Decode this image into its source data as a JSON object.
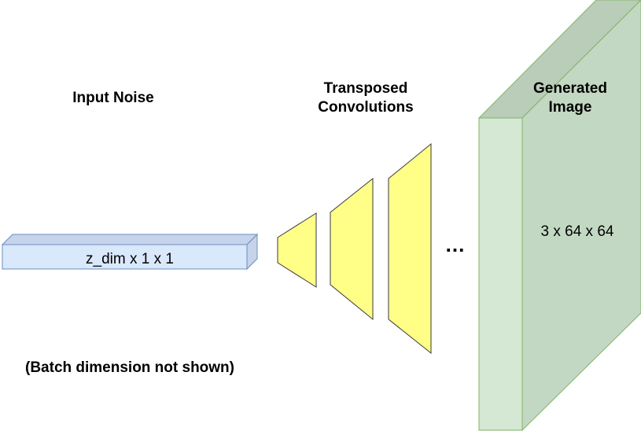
{
  "diagram": {
    "input_noise": {
      "title": "Input Noise",
      "shape_label": "z_dim x 1 x 1",
      "note": "(Batch dimension not shown)"
    },
    "transposed_convolutions": {
      "title_line1": "Transposed",
      "title_line2": "Convolutions",
      "ellipsis": "..."
    },
    "generated_image": {
      "title_line1": "Generated",
      "title_line2": "Image",
      "shape_label": "3 x 64 x 64"
    },
    "colors": {
      "input_front": "#dae8fc",
      "input_top": "#c6d3ea",
      "input_stroke": "#6c8ebf",
      "conv_fill": "#ffff88",
      "conv_stroke": "#36393d",
      "image_front": "#d5e8d4",
      "image_side": "#c3d8c2",
      "image_top": "#b9cdb8",
      "image_stroke": "#82b366"
    }
  }
}
